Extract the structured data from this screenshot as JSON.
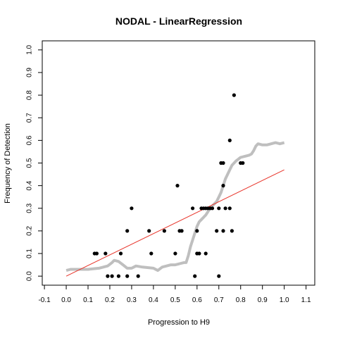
{
  "chart_data": {
    "type": "scatter",
    "title": "NODAL - LinearRegression",
    "xlabel": "Progression to H9",
    "ylabel": "Frequency of Detection",
    "xlim": [
      -0.11,
      1.14
    ],
    "ylim": [
      -0.04,
      1.04
    ],
    "xticks": [
      -0.1,
      0.0,
      0.1,
      0.2,
      0.3,
      0.4,
      0.5,
      0.6,
      0.7,
      0.8,
      0.9,
      1.0,
      1.1
    ],
    "xtick_labels": [
      "-0.1",
      "0.0",
      "0.1",
      "0.2",
      "0.3",
      "0.4",
      "0.5",
      "0.6",
      "0.7",
      "0.8",
      "0.9",
      "1.0",
      "1.1"
    ],
    "yticks": [
      0.0,
      0.1,
      0.2,
      0.3,
      0.4,
      0.5,
      0.6,
      0.7,
      0.8,
      0.9,
      1.0
    ],
    "ytick_labels": [
      "0.0",
      "0.1",
      "0.2",
      "0.3",
      "0.4",
      "0.5",
      "0.6",
      "0.7",
      "0.8",
      "0.9",
      "1.0"
    ],
    "grid": false,
    "legend": "none",
    "colors": {
      "points": "#000000",
      "regression": "#e8342a",
      "running_mean": "#bfbfbf",
      "frame": "#000000"
    },
    "series": [
      {
        "kind": "points",
        "points": [
          [
            0.13,
            0.1
          ],
          [
            0.14,
            0.1
          ],
          [
            0.18,
            0.1
          ],
          [
            0.19,
            0.0
          ],
          [
            0.21,
            0.0
          ],
          [
            0.24,
            0.0
          ],
          [
            0.25,
            0.1
          ],
          [
            0.28,
            0.2
          ],
          [
            0.28,
            0.0
          ],
          [
            0.3,
            0.3
          ],
          [
            0.33,
            0.0
          ],
          [
            0.38,
            0.2
          ],
          [
            0.39,
            0.1
          ],
          [
            0.45,
            0.2
          ],
          [
            0.5,
            0.1
          ],
          [
            0.51,
            0.4
          ],
          [
            0.52,
            0.2
          ],
          [
            0.53,
            0.2
          ],
          [
            0.58,
            0.3
          ],
          [
            0.59,
            0.0
          ],
          [
            0.6,
            0.2
          ],
          [
            0.6,
            0.1
          ],
          [
            0.61,
            0.1
          ],
          [
            0.62,
            0.3
          ],
          [
            0.63,
            0.3
          ],
          [
            0.64,
            0.1
          ],
          [
            0.64,
            0.3
          ],
          [
            0.65,
            0.3
          ],
          [
            0.66,
            0.3
          ],
          [
            0.67,
            0.3
          ],
          [
            0.69,
            0.2
          ],
          [
            0.7,
            0.3
          ],
          [
            0.7,
            0.0
          ],
          [
            0.71,
            0.5
          ],
          [
            0.72,
            0.5
          ],
          [
            0.72,
            0.4
          ],
          [
            0.72,
            0.2
          ],
          [
            0.73,
            0.3
          ],
          [
            0.75,
            0.3
          ],
          [
            0.75,
            0.6
          ],
          [
            0.76,
            0.2
          ],
          [
            0.77,
            0.8
          ],
          [
            0.8,
            0.5
          ],
          [
            0.81,
            0.5
          ]
        ]
      },
      {
        "kind": "regression",
        "line": [
          [
            0.0,
            0.0
          ],
          [
            1.0,
            0.47
          ]
        ]
      },
      {
        "kind": "running_mean",
        "line": [
          [
            0.0,
            0.025
          ],
          [
            0.02,
            0.03
          ],
          [
            0.05,
            0.03
          ],
          [
            0.1,
            0.03
          ],
          [
            0.15,
            0.035
          ],
          [
            0.19,
            0.045
          ],
          [
            0.21,
            0.06
          ],
          [
            0.22,
            0.07
          ],
          [
            0.24,
            0.065
          ],
          [
            0.26,
            0.05
          ],
          [
            0.28,
            0.035
          ],
          [
            0.3,
            0.035
          ],
          [
            0.32,
            0.045
          ],
          [
            0.35,
            0.04
          ],
          [
            0.4,
            0.035
          ],
          [
            0.42,
            0.025
          ],
          [
            0.44,
            0.04
          ],
          [
            0.46,
            0.045
          ],
          [
            0.48,
            0.05
          ],
          [
            0.5,
            0.05
          ],
          [
            0.52,
            0.055
          ],
          [
            0.54,
            0.06
          ],
          [
            0.55,
            0.06
          ],
          [
            0.56,
            0.09
          ],
          [
            0.57,
            0.13
          ],
          [
            0.58,
            0.16
          ],
          [
            0.59,
            0.19
          ],
          [
            0.6,
            0.22
          ],
          [
            0.61,
            0.24
          ],
          [
            0.62,
            0.25
          ],
          [
            0.63,
            0.26
          ],
          [
            0.64,
            0.27
          ],
          [
            0.65,
            0.285
          ],
          [
            0.66,
            0.3
          ],
          [
            0.67,
            0.31
          ],
          [
            0.68,
            0.32
          ],
          [
            0.69,
            0.33
          ],
          [
            0.7,
            0.35
          ],
          [
            0.71,
            0.37
          ],
          [
            0.72,
            0.4
          ],
          [
            0.73,
            0.43
          ],
          [
            0.74,
            0.45
          ],
          [
            0.75,
            0.47
          ],
          [
            0.76,
            0.49
          ],
          [
            0.78,
            0.51
          ],
          [
            0.8,
            0.525
          ],
          [
            0.82,
            0.53
          ],
          [
            0.84,
            0.535
          ],
          [
            0.85,
            0.54
          ],
          [
            0.86,
            0.555
          ],
          [
            0.87,
            0.575
          ],
          [
            0.88,
            0.585
          ],
          [
            0.9,
            0.58
          ],
          [
            0.92,
            0.58
          ],
          [
            0.94,
            0.585
          ],
          [
            0.96,
            0.59
          ],
          [
            0.98,
            0.585
          ],
          [
            1.0,
            0.59
          ]
        ]
      }
    ]
  }
}
